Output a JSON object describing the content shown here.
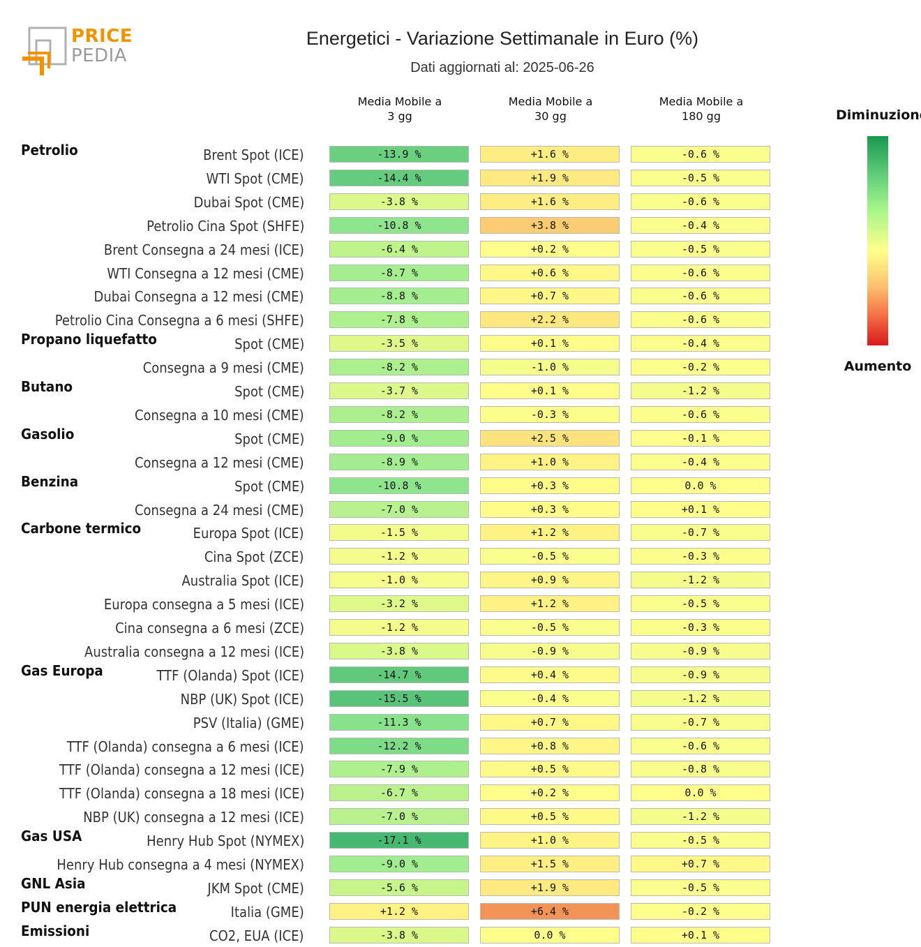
{
  "logo": {
    "line1": "PRICE",
    "line2": "PEDIA"
  },
  "title": "Energetici - Variazione Settimanale in Euro (%)",
  "subtitle": "Dati aggiornati al: 2025-06-26",
  "legend": {
    "top": "Diminuzione",
    "bottom": "Aumento",
    "colors": [
      "#1a9850",
      "#66d17a",
      "#a6f58a",
      "#ffff8c",
      "#fdbf6f",
      "#f46d43",
      "#d7191c"
    ]
  },
  "chart_data": {
    "type": "heatmap",
    "title": "Energetici - Variazione Settimanale in Euro (%)",
    "columns": [
      "Media Mobile a\n3 gg",
      "Media Mobile a\n30 gg",
      "Media Mobile a\n180 gg"
    ],
    "unit": "%",
    "rows": [
      {
        "group": "Petrolio",
        "label": "Brent Spot (ICE)",
        "values": [
          -13.9,
          1.6,
          -0.6
        ]
      },
      {
        "group": "",
        "label": "WTI Spot (CME)",
        "values": [
          -14.4,
          1.9,
          -0.5
        ]
      },
      {
        "group": "",
        "label": "Dubai Spot (CME)",
        "values": [
          -3.8,
          1.6,
          -0.6
        ]
      },
      {
        "group": "",
        "label": "Petrolio Cina Spot (SHFE)",
        "values": [
          -10.8,
          3.8,
          -0.4
        ]
      },
      {
        "group": "",
        "label": "Brent Consegna a 24 mesi (ICE)",
        "values": [
          -6.4,
          0.2,
          -0.5
        ]
      },
      {
        "group": "",
        "label": "WTI Consegna a 12 mesi (CME)",
        "values": [
          -8.7,
          0.6,
          -0.6
        ]
      },
      {
        "group": "",
        "label": "Dubai Consegna a 12 mesi (CME)",
        "values": [
          -8.8,
          0.7,
          -0.6
        ]
      },
      {
        "group": "",
        "label": "Petrolio Cina Consegna a 6 mesi (SHFE)",
        "values": [
          -7.8,
          2.2,
          -0.6
        ]
      },
      {
        "group": "Propano liquefatto",
        "label": "Spot (CME)",
        "values": [
          -3.5,
          0.1,
          -0.4
        ]
      },
      {
        "group": "",
        "label": "Consegna a 9 mesi (CME)",
        "values": [
          -8.2,
          -1.0,
          -0.2
        ]
      },
      {
        "group": "Butano",
        "label": "Spot (CME)",
        "values": [
          -3.7,
          0.1,
          -1.2
        ]
      },
      {
        "group": "",
        "label": "Consegna a 10 mesi (CME)",
        "values": [
          -8.2,
          -0.3,
          -0.6
        ]
      },
      {
        "group": "Gasolio",
        "label": "Spot (CME)",
        "values": [
          -9.0,
          2.5,
          -0.1
        ]
      },
      {
        "group": "",
        "label": "Consegna a 12 mesi (CME)",
        "values": [
          -8.9,
          1.0,
          -0.4
        ]
      },
      {
        "group": "Benzina",
        "label": "Spot (CME)",
        "values": [
          -10.8,
          0.3,
          0.0
        ]
      },
      {
        "group": "",
        "label": "Consegna a 24 mesi (CME)",
        "values": [
          -7.0,
          0.3,
          0.1
        ]
      },
      {
        "group": "Carbone termico",
        "label": "Europa Spot (ICE)",
        "values": [
          -1.5,
          1.2,
          -0.7
        ]
      },
      {
        "group": "",
        "label": "Cina Spot (ZCE)",
        "values": [
          -1.2,
          -0.5,
          -0.3
        ]
      },
      {
        "group": "",
        "label": "Australia Spot (ICE)",
        "values": [
          -1.0,
          0.9,
          -1.2
        ]
      },
      {
        "group": "",
        "label": "Europa consegna a 5 mesi (ICE)",
        "values": [
          -3.2,
          1.2,
          -0.5
        ]
      },
      {
        "group": "",
        "label": "Cina consegna a 6 mesi (ZCE)",
        "values": [
          -1.2,
          -0.5,
          -0.3
        ]
      },
      {
        "group": "",
        "label": "Australia consegna a 12 mesi (ICE)",
        "values": [
          -3.8,
          -0.9,
          -0.9
        ]
      },
      {
        "group": "Gas Europa",
        "label": "TTF (Olanda) Spot (ICE)",
        "values": [
          -14.7,
          0.4,
          -0.9
        ]
      },
      {
        "group": "",
        "label": "NBP (UK) Spot (ICE)",
        "values": [
          -15.5,
          -0.4,
          -1.2
        ]
      },
      {
        "group": "",
        "label": "PSV (Italia) (GME)",
        "values": [
          -11.3,
          0.7,
          -0.7
        ]
      },
      {
        "group": "",
        "label": "TTF (Olanda) consegna a 6 mesi (ICE)",
        "values": [
          -12.2,
          0.8,
          -0.6
        ]
      },
      {
        "group": "",
        "label": "TTF (Olanda) consegna a 12 mesi (ICE)",
        "values": [
          -7.9,
          0.5,
          -0.8
        ]
      },
      {
        "group": "",
        "label": "TTF (Olanda) consegna a 18 mesi (ICE)",
        "values": [
          -6.7,
          0.2,
          0.0
        ]
      },
      {
        "group": "",
        "label": "NBP (UK) consegna a 12 mesi (ICE)",
        "values": [
          -7.0,
          0.5,
          -1.2
        ]
      },
      {
        "group": "Gas USA",
        "label": "Henry Hub Spot (NYMEX)",
        "values": [
          -17.1,
          1.0,
          -0.5
        ]
      },
      {
        "group": "",
        "label": "Henry Hub consegna a 4 mesi (NYMEX)",
        "values": [
          -9.0,
          1.5,
          0.7
        ]
      },
      {
        "group": "GNL Asia",
        "label": "JKM Spot (CME)",
        "values": [
          -5.6,
          1.9,
          -0.5
        ]
      },
      {
        "group": "PUN energia elettrica",
        "label": "Italia (GME)",
        "values": [
          1.2,
          6.4,
          -0.2
        ]
      },
      {
        "group": "Emissioni",
        "label": "CO2, EUA (ICE)",
        "values": [
          -3.8,
          0.0,
          0.1
        ]
      }
    ]
  }
}
